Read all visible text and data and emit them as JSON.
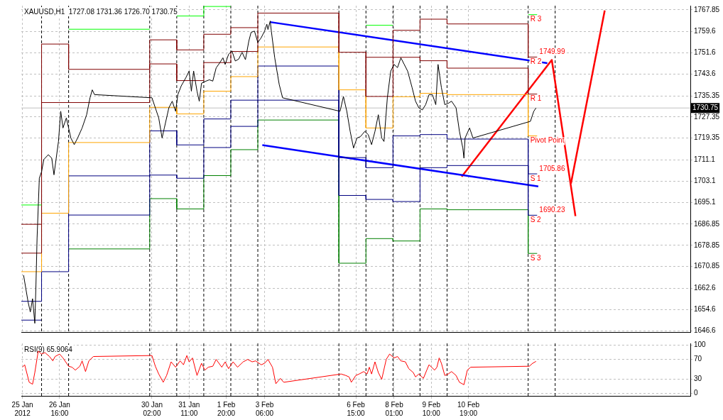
{
  "chart_data": [
    {
      "type": "line",
      "title": "XAUUSD,H1  1727.08 1731.36 1726.70 1730.75",
      "xlim": [
        "2012-01-25T06:00",
        "2012-02-19T00:00"
      ],
      "ylim": [
        1646.1,
        1769.4
      ],
      "xticks": [
        {
          "value": "2012-01-25T07:00",
          "label": null
        },
        {
          "value": "2012-01-26T16:00",
          "label": null
        },
        {
          "value": "2012-01-30T02:00",
          "label": null
        },
        {
          "value": "2012-01-31T11:00",
          "label": null
        },
        {
          "value": "2012-02-01T20:00",
          "label": null
        },
        {
          "value": "2012-02-03T06:00",
          "label": null
        },
        {
          "value": "2012-02-06T15:00",
          "label": null
        },
        {
          "value": "2012-02-08T01:00",
          "label": null
        },
        {
          "value": "2012-02-09T10:00",
          "label": null
        },
        {
          "value": "2012-02-10T19:00",
          "label": null
        }
      ],
      "yticks": [
        1646.6,
        1654.6,
        1662.6,
        1670.85,
        1678.85,
        1686.85,
        1695.1,
        1703.1,
        1711.1,
        1719.35,
        1727.35,
        1735.35,
        1743.6,
        1751.6,
        1759.6,
        1767.85
      ],
      "tick_labels": "y",
      "grid": true,
      "series": [
        {
          "color": "#000000",
          "x": [
            "2012-01-25T08:00",
            "2012-01-25T12:00",
            "2012-01-25T14:00",
            "2012-01-25T16:00",
            "2012-01-25T18:00",
            "2012-01-25T19:00",
            "2012-01-25T20:00",
            "2012-01-25T22:00",
            "2012-01-26T00:00",
            "2012-01-26T02:00",
            "2012-01-26T06:00",
            "2012-01-26T09:00",
            "2012-01-26T11:00",
            "2012-01-26T15:00",
            "2012-01-26T17:00",
            "2012-01-26T19:00",
            "2012-01-26T22:00",
            "2012-01-27T02:00",
            "2012-01-27T05:00",
            "2012-01-27T08:00",
            "2012-01-27T12:00",
            "2012-01-27T16:00",
            "2012-01-27T19:00",
            "2012-01-27T21:00",
            "2012-01-27T23:00",
            "2012-01-30T02:00",
            "2012-01-30T05:00",
            "2012-01-30T08:00",
            "2012-01-30T11:00",
            "2012-01-30T13:00",
            "2012-01-30T17:00",
            "2012-01-30T20:00",
            "2012-01-30T23:00",
            "2012-01-31T01:00",
            "2012-01-31T04:00",
            "2012-01-31T08:00",
            "2012-01-31T11:00",
            "2012-01-31T13:00",
            "2012-01-31T15:00",
            "2012-01-31T18:00",
            "2012-01-31T20:00",
            "2012-01-31T22:00",
            "2012-02-01T02:00",
            "2012-02-01T05:00",
            "2012-02-01T08:00",
            "2012-02-01T11:00",
            "2012-02-01T14:00",
            "2012-02-01T17:00",
            "2012-02-01T19:00",
            "2012-02-01T22:00",
            "2012-02-02T01:00",
            "2012-02-02T04:00",
            "2012-02-02T07:00",
            "2012-02-02T10:00",
            "2012-02-02T13:00",
            "2012-02-02T16:00",
            "2012-02-02T18:00",
            "2012-02-02T21:00",
            "2012-02-03T00:00",
            "2012-02-03T03:00",
            "2012-02-03T06:00",
            "2012-02-03T08:00",
            "2012-02-03T09:00",
            "2012-02-03T11:00",
            "2012-02-03T12:00",
            "2012-02-03T15:00",
            "2012-02-03T19:00",
            "2012-02-03T22:00",
            "2012-02-06T01:00",
            "2012-02-06T04:00",
            "2012-02-06T07:00",
            "2012-02-06T10:00",
            "2012-02-06T13:00",
            "2012-02-06T16:00",
            "2012-02-06T19:00",
            "2012-02-06T23:00",
            "2012-02-07T02:00",
            "2012-02-07T05:00",
            "2012-02-07T08:00",
            "2012-02-07T11:00",
            "2012-02-07T14:00",
            "2012-02-07T16:00",
            "2012-02-07T19:00",
            "2012-02-07T22:00",
            "2012-02-08T01:00",
            "2012-02-08T04:00",
            "2012-02-08T07:00",
            "2012-02-08T10:00",
            "2012-02-08T13:00",
            "2012-02-08T17:00",
            "2012-02-08T20:00",
            "2012-02-08T23:00",
            "2012-02-09T02:00",
            "2012-02-09T05:00",
            "2012-02-09T08:00",
            "2012-02-09T11:00",
            "2012-02-09T14:00",
            "2012-02-09T16:00",
            "2012-02-09T19:00",
            "2012-02-09T22:00",
            "2012-02-10T01:00",
            "2012-02-10T04:00",
            "2012-02-10T08:00",
            "2012-02-10T11:00",
            "2012-02-10T14:00",
            "2012-02-10T15:00",
            "2012-02-10T16:00",
            "2012-02-10T20:00",
            "2012-02-10T23:00",
            "2012-02-13T02:00",
            "2012-02-13T05:00",
            "2012-02-13T07:00"
          ],
          "values": [
            1667.6,
            1657.5,
            1653.7,
            1658.7,
            1649.4,
            1663.8,
            1681.5,
            1704.2,
            1706.7,
            1711.3,
            1713.1,
            1711.8,
            1705.5,
            1718.1,
            1729.5,
            1723.2,
            1727.0,
            1719.4,
            1716.9,
            1719.4,
            1723.2,
            1728.2,
            1734.6,
            1737.6,
            1735.8,
            1734.6,
            1730.8,
            1727.0,
            1719.4,
            1723.2,
            1730.8,
            1733.3,
            1729.5,
            1735.8,
            1739.1,
            1742.1,
            1744.7,
            1737.1,
            1744.7,
            1737.1,
            1733.3,
            1740.1,
            1740.9,
            1741.4,
            1740.9,
            1745.9,
            1747.7,
            1749.7,
            1747.2,
            1751.0,
            1752.3,
            1748.5,
            1749.2,
            1751.8,
            1749.0,
            1756.0,
            1759.3,
            1759.8,
            1755.5,
            1757.3,
            1759.8,
            1762.4,
            1760.4,
            1763.6,
            1759.8,
            1749.7,
            1739.6,
            1734.6,
            1729.5,
            1735.1,
            1729.5,
            1721.9,
            1715.6,
            1719.4,
            1719.9,
            1721.9,
            1720.7,
            1716.9,
            1721.9,
            1728.2,
            1719.4,
            1718.1,
            1734.6,
            1744.7,
            1747.2,
            1746.0,
            1749.7,
            1747.2,
            1744.7,
            1738.4,
            1733.3,
            1730.8,
            1730.0,
            1732.0,
            1735.8,
            1735.8,
            1732.0,
            1747.2,
            1738.4,
            1732.0,
            1732.5,
            1733.3,
            1730.8,
            1721.9,
            1715.6,
            1711.8,
            1719.4,
            1723.2,
            1719.4,
            1725.7,
            1729.5,
            1730.75
          ]
        },
        {
          "type": "step",
          "color": "#00ff00",
          "x": [
            "2012-01-25T06:00",
            "2012-01-26T00:00",
            "2012-01-27T00:00",
            "2012-01-30T00:00",
            "2012-01-31T00:00",
            "2012-02-01T00:00",
            "2012-02-02T00:00",
            "2012-02-07T00:00",
            "2012-02-08T00:00",
            "2012-02-13T00:00",
            "2012-02-13T08:00"
          ],
          "values": [
            1694.1,
            null,
            1760.5,
            null,
            1765.5,
            1769.1,
            null,
            1762.0,
            null,
            1766.0,
            1766.0
          ]
        },
        {
          "type": "step",
          "color": "#800000",
          "x": [
            "2012-01-25T06:00",
            "2012-01-26T00:00",
            "2012-01-27T00:00",
            "2012-01-30T00:00",
            "2012-01-31T00:00",
            "2012-02-01T00:00",
            "2012-02-02T00:00",
            "2012-02-03T00:00",
            "2012-02-07T00:00",
            "2012-02-08T00:00",
            "2012-02-09T00:00",
            "2012-02-10T00:00",
            "2012-02-13T00:00",
            "2012-02-13T08:00"
          ],
          "values": [
            1686.8,
            1754.9,
            1745.35,
            1756.5,
            1752.7,
            1758.6,
            1761.1,
            null,
            1749.9,
            1760.1,
            1764.3,
            1762.5,
            1749.99,
            1749.99
          ]
        },
        {
          "type": "step",
          "color": "#800000",
          "x": [
            "2012-01-25T06:00",
            "2012-01-26T00:00",
            "2012-01-27T00:00",
            "2012-01-30T00:00",
            "2012-01-31T00:00",
            "2012-02-01T00:00",
            "2012-02-02T00:00",
            "2012-02-03T00:00",
            "2012-02-06T00:00",
            "2012-02-07T00:00",
            "2012-02-08T00:00",
            "2012-02-09T00:00",
            "2012-02-10T00:00",
            "2012-02-13T00:00",
            "2012-02-13T08:00"
          ],
          "values": [
            1675.9,
            1732.8,
            1732.8,
            1747.4,
            1741.1,
            1747.9,
            1752.1,
            1766.6,
            1751.8,
            1735.1,
            1749.9,
            1748.6,
            1745.8,
            1736.0,
            1736.0
          ]
        },
        {
          "type": "step",
          "color": "#ffa500",
          "x": [
            "2012-01-25T06:00",
            "2012-01-26T00:00",
            "2012-01-27T00:00",
            "2012-01-30T00:00",
            "2012-01-31T00:00",
            "2012-02-01T00:00",
            "2012-02-02T00:00",
            "2012-02-03T00:00",
            "2012-02-06T00:00",
            "2012-02-07T00:00",
            "2012-02-08T00:00",
            "2012-02-09T00:00",
            "2012-02-10T00:00",
            "2012-02-13T00:00",
            "2012-02-13T08:00"
          ],
          "values": [
            1668.9,
            1691.0,
            1717.7,
            1731.0,
            1728.5,
            1737.1,
            1742.6,
            1753.8,
            1737.6,
            1723.2,
            1735.0,
            1736.3,
            1735.8,
            1720.2,
            1720.2
          ]
        },
        {
          "type": "step",
          "color": "#000080",
          "x": [
            "2012-01-25T06:00",
            "2012-01-26T00:00",
            "2012-01-27T00:00",
            "2012-01-30T00:00",
            "2012-01-31T00:00",
            "2012-02-01T00:00",
            "2012-02-02T00:00",
            "2012-02-03T00:00",
            "2012-02-06T00:00",
            "2012-02-07T00:00",
            "2012-02-08T00:00",
            "2012-02-09T00:00",
            "2012-02-10T00:00",
            "2012-02-13T00:00",
            "2012-02-13T08:00"
          ],
          "values": [
            1657.7,
            1668.9,
            1705.1,
            1722.1,
            1716.8,
            1726.6,
            1733.7,
            1746.6,
            1712.0,
            1708.2,
            1720.2,
            1720.7,
            1719.0,
            1705.86,
            1705.86
          ]
        },
        {
          "type": "step",
          "color": "#000080",
          "x": [
            "2012-01-25T06:00",
            "2012-01-26T00:00",
            "2012-01-27T00:00",
            "2012-01-30T00:00",
            "2012-01-31T00:00",
            "2012-02-01T00:00",
            "2012-02-02T00:00",
            "2012-02-03T00:00",
            "2012-02-06T00:00",
            "2012-02-07T00:00",
            "2012-02-08T00:00",
            "2012-02-09T00:00",
            "2012-02-10T00:00",
            "2012-02-13T00:00",
            "2012-02-13T08:00"
          ],
          "values": [
            1650.6,
            null,
            1690.3,
            1705.4,
            1704.2,
            1715.8,
            1723.8,
            1733.7,
            1697.7,
            1696.2,
            1695.4,
            1708.2,
            1709.0,
            1690.23,
            1690.23
          ]
        },
        {
          "type": "step",
          "color": "#008000",
          "x": [
            "2012-01-27T00:00",
            "2012-01-30T00:00",
            "2012-01-31T00:00",
            "2012-02-01T00:00",
            "2012-02-02T00:00",
            "2012-02-03T00:00",
            "2012-02-06T00:00",
            "2012-02-07T00:00",
            "2012-02-08T00:00",
            "2012-02-09T00:00",
            "2012-02-10T00:00",
            "2012-02-13T00:00",
            "2012-02-13T08:00"
          ],
          "values": [
            1677.5,
            1696.5,
            1692.6,
            1705.2,
            1715.0,
            1726.2,
            1672.1,
            1681.4,
            1680.5,
            1692.6,
            1692.3,
            1675.8,
            1675.8
          ]
        },
        {
          "color": "#0000ff",
          "x": [
            "2012-02-03T11:00",
            "2012-02-13T17:00"
          ],
          "values": [
            1763.2,
            1747.7
          ]
        },
        {
          "color": "#0000ff",
          "x": [
            "2012-02-03T04:00",
            "2012-02-13T09:00"
          ],
          "values": [
            1716.7,
            1701.1
          ]
        },
        {
          "color": "#ff0000",
          "x": [
            "2012-02-10T13:00",
            "2012-02-13T21:00",
            "2012-02-14T18:00"
          ],
          "values": [
            1704.8,
            1748.9,
            1689.9
          ]
        },
        {
          "color": "#ff0000",
          "x": [
            "2012-02-14T14:00",
            "2012-02-15T20:00"
          ],
          "values": [
            1702.2,
            1767.6
          ]
        }
      ],
      "ref_lines": [
        {
          "axis": "x",
          "value": "2012-01-26",
          "color": "#000000",
          "line_style": "dashed"
        },
        {
          "axis": "x",
          "value": "2012-01-27",
          "color": "#000000",
          "line_style": "dashed"
        },
        {
          "axis": "x",
          "value": "2012-01-30",
          "color": "#000000",
          "line_style": "dashed"
        },
        {
          "axis": "x",
          "value": "2012-01-31",
          "color": "#000000",
          "line_style": "dashed"
        },
        {
          "axis": "x",
          "value": "2012-02-01",
          "color": "#000000",
          "line_style": "dashed"
        },
        {
          "axis": "x",
          "value": "2012-02-02",
          "color": "#000000",
          "line_style": "dashed"
        },
        {
          "axis": "x",
          "value": "2012-02-03",
          "color": "#000000",
          "line_style": "dashed"
        },
        {
          "axis": "x",
          "value": "2012-02-06",
          "color": "#000000",
          "line_style": "dashed"
        },
        {
          "axis": "x",
          "value": "2012-02-07",
          "color": "#000000",
          "line_style": "dashed"
        },
        {
          "axis": "x",
          "value": "2012-02-08",
          "color": "#000000",
          "line_style": "dashed"
        },
        {
          "axis": "x",
          "value": "2012-02-09",
          "color": "#000000",
          "line_style": "dashed"
        },
        {
          "axis": "x",
          "value": "2012-02-10",
          "color": "#000000",
          "line_style": "dashed"
        },
        {
          "axis": "x",
          "value": "2012-02-13",
          "color": "#000000",
          "line_style": "dashed"
        },
        {
          "axis": "x",
          "value": "2012-02-14",
          "color": "#000000",
          "line_style": "dashed"
        },
        {
          "axis": "y",
          "value": 1730.75,
          "label": "1730.75",
          "color": "#c0c0c0"
        }
      ],
      "annotations": [
        {
          "text": "R 3",
          "x": "2012-02-13T00:00",
          "y": 1766.0
        },
        {
          "text": "R 2",
          "x": "2012-02-13T00:00",
          "y": 1749.99
        },
        {
          "text": "R 1",
          "x": "2012-02-13T00:00",
          "y": 1736.0
        },
        {
          "text": "Pivot Point",
          "x": "2012-02-13T00:00",
          "y": 1720.2
        },
        {
          "text": "S 1",
          "x": "2012-02-13T00:00",
          "y": 1705.86
        },
        {
          "text": "S 2",
          "x": "2012-02-13T00:00",
          "y": 1690.23
        },
        {
          "text": "S 3",
          "x": "2012-02-13T00:00",
          "y": 1675.8
        },
        {
          "text": "1749.99",
          "x": "2012-02-13T08:00",
          "y": 1749.99
        },
        {
          "text": "1705.86",
          "x": "2012-02-13T08:00",
          "y": 1705.86
        },
        {
          "text": "1690.23",
          "x": "2012-02-13T08:00",
          "y": 1690.23
        }
      ]
    },
    {
      "type": "line",
      "title": "RSI(9) 65.9064",
      "xlim": [
        "2012-01-25T06:00",
        "2012-02-19T00:00"
      ],
      "ylim": [
        -5,
        103
      ],
      "xticks": [
        {
          "value": "2012-01-25T07:00",
          "label": "25 Jan 2012"
        },
        {
          "value": "2012-01-26T16:00",
          "label": "26 Jan 16:00"
        },
        {
          "value": "2012-01-30T02:00",
          "label": "30 Jan 02:00"
        },
        {
          "value": "2012-01-31T11:00",
          "label": "31 Jan 11:00"
        },
        {
          "value": "2012-02-01T20:00",
          "label": "1 Feb 20:00"
        },
        {
          "value": "2012-02-03T06:00",
          "label": "3 Feb 06:00"
        },
        {
          "value": "2012-02-06T15:00",
          "label": "6 Feb 15:00"
        },
        {
          "value": "2012-02-08T01:00",
          "label": "8 Feb 01:00"
        },
        {
          "value": "2012-02-09T10:00",
          "label": "9 Feb 10:00"
        },
        {
          "value": "2012-02-10T19:00",
          "label": "10 Feb 19:00"
        }
      ],
      "yticks": [
        0,
        30,
        70,
        100
      ],
      "grid": true,
      "series": [
        {
          "color": "#ff0000",
          "x": [
            "2012-01-25T07:00",
            "2012-01-25T09:00",
            "2012-01-25T13:00",
            "2012-01-25T16:00",
            "2012-01-25T18:00",
            "2012-01-25T21:00",
            "2012-01-26T00:00",
            "2012-01-26T03:00",
            "2012-01-26T07:00",
            "2012-01-26T10:00",
            "2012-01-26T12:00",
            "2012-01-26T16:00",
            "2012-01-26T19:00",
            "2012-01-27T00:00",
            "2012-01-27T03:00",
            "2012-01-27T06:00",
            "2012-01-27T10:00",
            "2012-01-27T12:00",
            "2012-01-27T15:00",
            "2012-01-27T18:00",
            "2012-01-27T22:00",
            "2012-01-30T02:00",
            "2012-01-30T05:00",
            "2012-01-30T08:00",
            "2012-01-30T12:00",
            "2012-01-30T15:00",
            "2012-01-30T19:00",
            "2012-01-30T23:00",
            "2012-01-31T03:00",
            "2012-01-31T06:00",
            "2012-01-31T09:00",
            "2012-01-31T11:00",
            "2012-01-31T14:00",
            "2012-01-31T18:00",
            "2012-01-31T22:00",
            "2012-02-01T01:00",
            "2012-02-01T04:00",
            "2012-02-01T08:00",
            "2012-02-01T11:00",
            "2012-02-01T16:00",
            "2012-02-01T19:00",
            "2012-02-01T22:00",
            "2012-02-02T02:00",
            "2012-02-02T06:00",
            "2012-02-02T11:00",
            "2012-02-02T15:00",
            "2012-02-02T19:00",
            "2012-02-02T22:00",
            "2012-02-03T03:00",
            "2012-02-03T06:00",
            "2012-02-03T09:00",
            "2012-02-03T13:00",
            "2012-02-03T16:00",
            "2012-02-03T20:00",
            "2012-02-03T23:00",
            "2012-02-06T02:00",
            "2012-02-06T06:00",
            "2012-02-06T09:00",
            "2012-02-06T11:00",
            "2012-02-06T15:00",
            "2012-02-06T18:00",
            "2012-02-06T22:00",
            "2012-02-07T01:00",
            "2012-02-07T03:00",
            "2012-02-07T05:00",
            "2012-02-07T08:00",
            "2012-02-07T11:00",
            "2012-02-07T14:00",
            "2012-02-07T18:00",
            "2012-02-07T21:00",
            "2012-02-08T01:00",
            "2012-02-08T04:00",
            "2012-02-08T07:00",
            "2012-02-08T11:00",
            "2012-02-08T14:00",
            "2012-02-08T18:00",
            "2012-02-08T20:00",
            "2012-02-08T23:00",
            "2012-02-09T03:00",
            "2012-02-09T06:00",
            "2012-02-09T08:00",
            "2012-02-09T13:00",
            "2012-02-09T15:00",
            "2012-02-09T17:00",
            "2012-02-09T19:00",
            "2012-02-09T22:00",
            "2012-02-10T01:00",
            "2012-02-10T04:00",
            "2012-02-10T08:00",
            "2012-02-10T11:00",
            "2012-02-10T15:00",
            "2012-02-10T18:00",
            "2012-02-10T21:00",
            "2012-02-13T01:00",
            "2012-02-13T04:00",
            "2012-02-13T07:00"
          ],
          "values": [
            54,
            59,
            23,
            19,
            43,
            87,
            81,
            84,
            76,
            67,
            76,
            81,
            73,
            56,
            54,
            48,
            56,
            67,
            45,
            67,
            76,
            78,
            56,
            40,
            23,
            37,
            65,
            54,
            67,
            59,
            78,
            65,
            73,
            37,
            62,
            48,
            54,
            56,
            70,
            54,
            65,
            51,
            65,
            54,
            65,
            70,
            65,
            67,
            59,
            62,
            70,
            54,
            20,
            31,
            23,
            40,
            37,
            34,
            23,
            37,
            40,
            45,
            40,
            54,
            40,
            65,
            43,
            29,
            70,
            81,
            73,
            76,
            67,
            65,
            51,
            43,
            34,
            40,
            31,
            48,
            59,
            48,
            54,
            73,
            62,
            37,
            40,
            45,
            37,
            23,
            18,
            48,
            54,
            56,
            62,
            66
          ]
        }
      ],
      "ref_lines": [
        {
          "axis": "x",
          "value": "2012-01-26",
          "color": "#000000",
          "line_style": "dashed"
        },
        {
          "axis": "x",
          "value": "2012-01-27",
          "color": "#000000",
          "line_style": "dashed"
        },
        {
          "axis": "x",
          "value": "2012-01-30",
          "color": "#000000",
          "line_style": "dashed"
        },
        {
          "axis": "x",
          "value": "2012-01-31",
          "color": "#000000",
          "line_style": "dashed"
        },
        {
          "axis": "x",
          "value": "2012-02-01",
          "color": "#000000",
          "line_style": "dashed"
        },
        {
          "axis": "x",
          "value": "2012-02-02",
          "color": "#000000",
          "line_style": "dashed"
        },
        {
          "axis": "x",
          "value": "2012-02-03",
          "color": "#000000",
          "line_style": "dashed"
        },
        {
          "axis": "x",
          "value": "2012-02-06",
          "color": "#000000",
          "line_style": "dashed"
        },
        {
          "axis": "x",
          "value": "2012-02-07",
          "color": "#000000",
          "line_style": "dashed"
        },
        {
          "axis": "x",
          "value": "2012-02-08",
          "color": "#000000",
          "line_style": "dashed"
        },
        {
          "axis": "x",
          "value": "2012-02-09",
          "color": "#000000",
          "line_style": "dashed"
        },
        {
          "axis": "x",
          "value": "2012-02-10",
          "color": "#000000",
          "line_style": "dashed"
        },
        {
          "axis": "x",
          "value": "2012-02-13",
          "color": "#000000",
          "line_style": "dashed"
        },
        {
          "axis": "x",
          "value": "2012-02-14",
          "color": "#000000",
          "line_style": "dashed"
        }
      ]
    }
  ]
}
